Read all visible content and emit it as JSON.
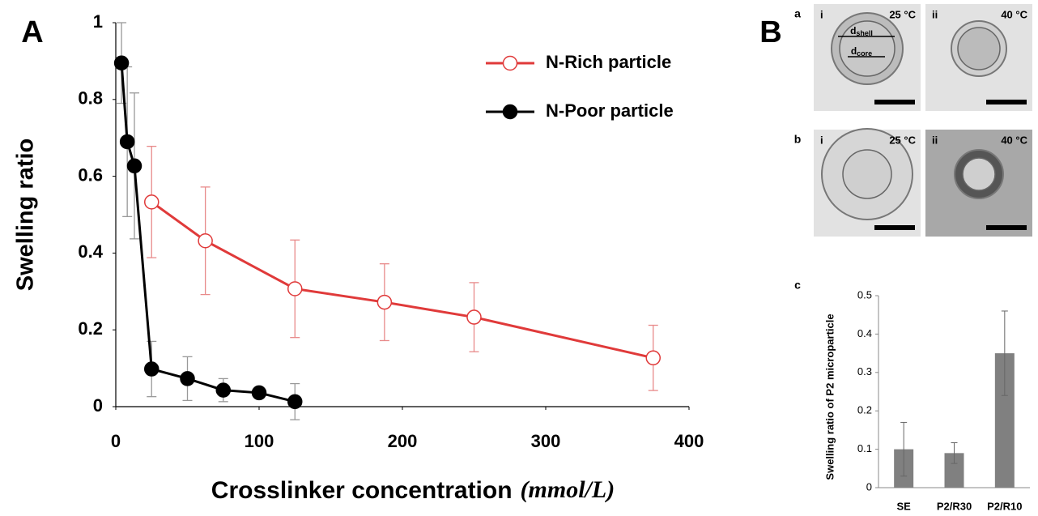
{
  "panel_labels": {
    "A": "A",
    "B": "B"
  },
  "micrographs": [
    {
      "row_label": "a",
      "panels": [
        {
          "label": "i",
          "temperature": "25 °C"
        },
        {
          "label": "ii",
          "temperature": "40 °C"
        }
      ]
    },
    {
      "row_label": "b",
      "panels": [
        {
          "label": "i",
          "temperature": "25 °C"
        },
        {
          "label": "ii",
          "temperature": "40 °C"
        }
      ]
    }
  ],
  "dimension_labels": [
    {
      "symbol": "d",
      "subscript": "shell"
    },
    {
      "symbol": "d",
      "subscript": "core"
    }
  ],
  "chart_data": [
    {
      "type": "line",
      "xlabel": "Crosslinker concentration",
      "xlabel_units": "(mmol/L)",
      "ylabel": "Swelling ratio",
      "xlim": [
        0,
        400
      ],
      "xticks": [
        0,
        100,
        200,
        300,
        400
      ],
      "ylim": [
        0,
        1
      ],
      "yticks": [
        0,
        0.2,
        0.4,
        0.6,
        0.8,
        1
      ],
      "legend": "upper right",
      "series": [
        {
          "name": "N-Rich particle",
          "color": "#e03a3a",
          "error_color": "#e88a8a",
          "filled": false,
          "x": [
            25,
            62.5,
            125,
            187.5,
            250,
            375
          ],
          "values": [
            0.533,
            0.432,
            0.307,
            0.272,
            0.233,
            0.127
          ],
          "errors": [
            0.145,
            0.14,
            0.127,
            0.1,
            0.09,
            0.085
          ]
        },
        {
          "name": "N-Poor particle",
          "color": "#000000",
          "error_color": "#999999",
          "filled": true,
          "x": [
            4,
            8,
            13,
            25,
            50,
            75,
            100,
            125
          ],
          "values": [
            0.895,
            0.69,
            0.627,
            0.098,
            0.073,
            0.043,
            0.036,
            0.013
          ],
          "errors": [
            0.105,
            0.195,
            0.19,
            0.072,
            0.057,
            0.03,
            0.01,
            0.047
          ]
        }
      ]
    },
    {
      "type": "bar",
      "panel_label": "c",
      "ylabel": "Swelling ratio of P2 microparticle",
      "categories": [
        "SE",
        "P2/R30",
        "P2/R10"
      ],
      "values": [
        0.1,
        0.09,
        0.35
      ],
      "errors": [
        0.07,
        0.027,
        0.11
      ],
      "color": "#808080",
      "ylim": [
        0,
        0.5
      ],
      "yticks": [
        0,
        0.1,
        0.2,
        0.3,
        0.4,
        0.5
      ]
    }
  ]
}
